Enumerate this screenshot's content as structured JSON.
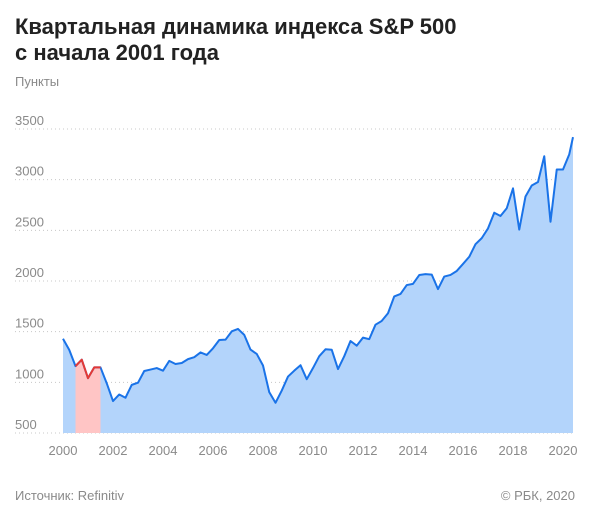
{
  "chart_data": {
    "type": "area",
    "title": [
      "Квартальная динамика индекса S&P 500",
      "с начала 2001 года"
    ],
    "subtitle": "Пункты",
    "source": "Источник:  Refinitiv",
    "copyright": "© РБК, 2020",
    "x": [
      2000,
      2000.25,
      2000.5,
      2000.75,
      2001,
      2001.25,
      2001.5,
      2001.75,
      2002,
      2002.25,
      2002.5,
      2002.75,
      2003,
      2003.25,
      2003.5,
      2003.75,
      2004,
      2004.25,
      2004.5,
      2004.75,
      2005,
      2005.25,
      2005.5,
      2005.75,
      2006,
      2006.25,
      2006.5,
      2006.75,
      2007,
      2007.25,
      2007.5,
      2007.75,
      2008,
      2008.25,
      2008.5,
      2008.75,
      2009,
      2009.25,
      2009.5,
      2009.75,
      2010,
      2010.25,
      2010.5,
      2010.75,
      2011,
      2011.25,
      2011.5,
      2011.75,
      2012,
      2012.25,
      2012.5,
      2012.75,
      2013,
      2013.25,
      2013.5,
      2013.75,
      2014,
      2014.25,
      2014.5,
      2014.75,
      2015,
      2015.25,
      2015.5,
      2015.75,
      2016,
      2016.25,
      2016.5,
      2016.75,
      2017,
      2017.25,
      2017.5,
      2017.75,
      2018,
      2018.25,
      2018.5,
      2018.75,
      2019,
      2019.25,
      2019.5,
      2019.75,
      2020,
      2020.25,
      2020.4
    ],
    "series": [
      {
        "color": "#1a73e8",
        "fill": "#b3d4fb",
        "values": [
          1430,
          1320,
          1160,
          1224,
          1041,
          1148,
          1147,
          990,
          815,
          880,
          848,
          975,
          996,
          1112,
          1126,
          1141,
          1115,
          1212,
          1181,
          1191,
          1229,
          1248,
          1295,
          1270,
          1336,
          1418,
          1421,
          1503,
          1527,
          1468,
          1323,
          1280,
          1166,
          903,
          798,
          919,
          1057,
          1115,
          1169,
          1031,
          1141,
          1258,
          1326,
          1321,
          1131,
          1258,
          1408,
          1362,
          1441,
          1426,
          1569,
          1606,
          1682,
          1848,
          1872,
          1960,
          1972,
          2059,
          2068,
          2063,
          1920,
          2044,
          2060,
          2099,
          2168,
          2239,
          2363,
          2423,
          2519,
          2674,
          2641,
          2718,
          2914,
          2507,
          2834,
          2942,
          2977,
          3231,
          2585,
          3100,
          3100,
          3250,
          3420
        ]
      }
    ],
    "highlight": {
      "xlim": [
        2000.5,
        2001.5
      ],
      "color": "#e53935",
      "fill": "#ffc5c5"
    },
    "xlim": [
      2000,
      2020.4
    ],
    "xticks": [
      2000,
      2002,
      2004,
      2006,
      2008,
      2010,
      2012,
      2014,
      2016,
      2018,
      2020
    ],
    "ylim": [
      500,
      3500
    ],
    "yticks": [
      500,
      1000,
      1500,
      2000,
      2500,
      3000,
      3500
    ],
    "grid": true
  }
}
